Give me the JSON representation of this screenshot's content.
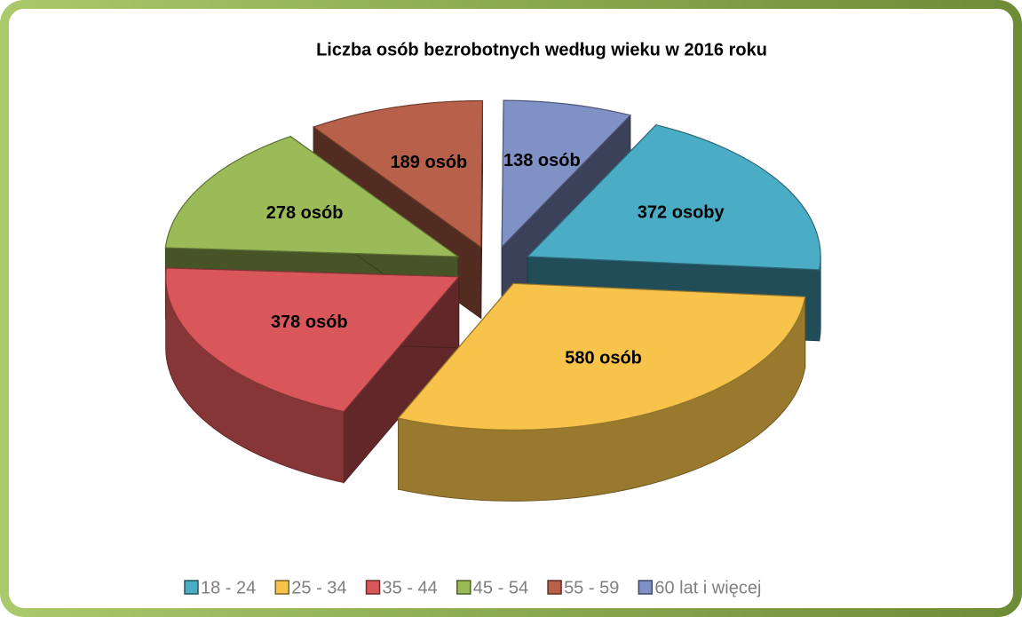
{
  "chart_data": {
    "type": "pie3d",
    "title": "Liczba osób bezrobotnych według  wieku w 2016 roku",
    "categories": [
      "18 - 24",
      "25 - 34",
      "35 - 44",
      "45 - 54",
      "55 - 59",
      "60 lat i więcej"
    ],
    "values": [
      372,
      580,
      378,
      278,
      189,
      138
    ],
    "value_labels": [
      "372 osoby",
      "580 osób",
      "378 osób",
      "278 osób",
      "189 osób",
      "138 osób"
    ],
    "colors": [
      "#4aacc5",
      "#f7c34a",
      "#d9575a",
      "#9bbb59",
      "#b8614a",
      "#8091c6"
    ],
    "legend": "bottom"
  }
}
